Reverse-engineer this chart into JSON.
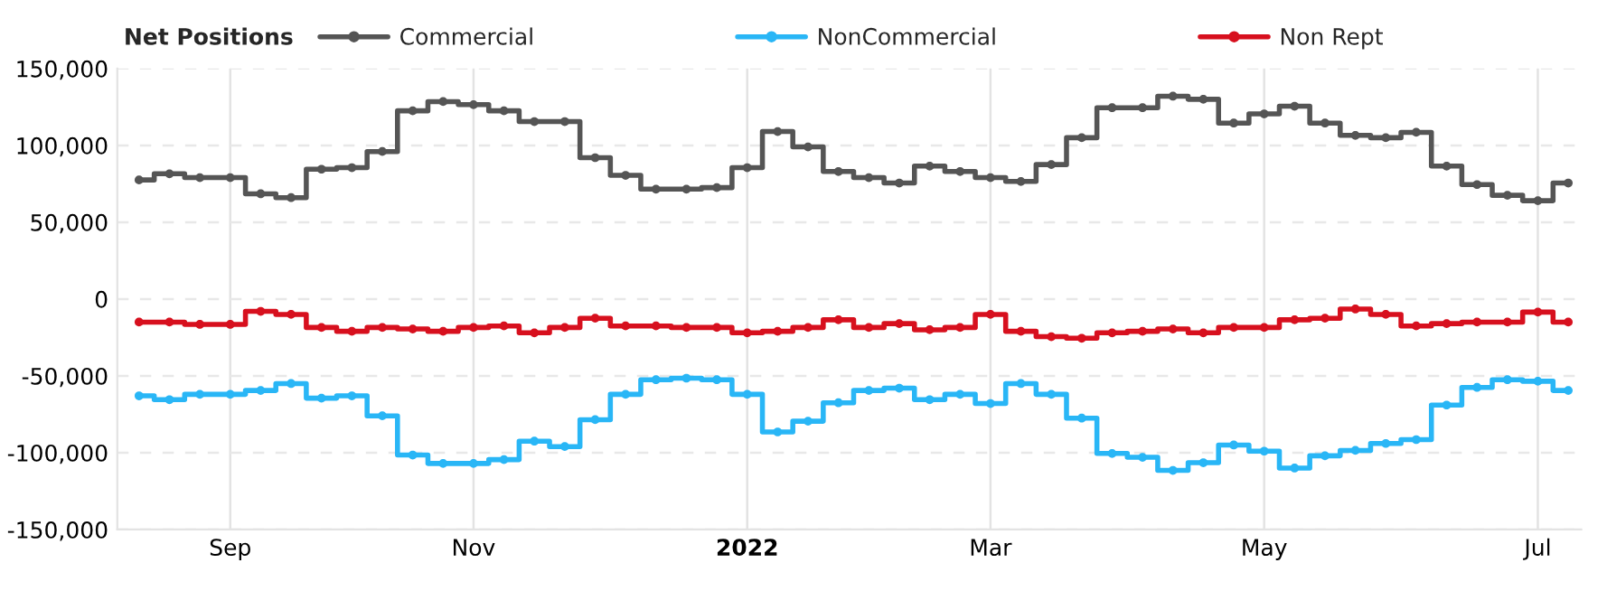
{
  "chart_data": {
    "type": "step",
    "title": "Net Positions",
    "x": [
      "2021-08-17",
      "2021-08-24",
      "2021-08-31",
      "2021-09-07",
      "2021-09-14",
      "2021-09-21",
      "2021-09-28",
      "2021-10-05",
      "2021-10-12",
      "2021-10-19",
      "2021-10-26",
      "2021-11-02",
      "2021-11-09",
      "2021-11-16",
      "2021-11-23",
      "2021-11-30",
      "2021-12-07",
      "2021-12-14",
      "2021-12-21",
      "2021-12-28",
      "2022-01-04",
      "2022-01-11",
      "2022-01-18",
      "2022-01-25",
      "2022-02-01",
      "2022-02-08",
      "2022-02-15",
      "2022-02-22",
      "2022-03-01",
      "2022-03-08",
      "2022-03-15",
      "2022-03-22",
      "2022-03-29",
      "2022-04-05",
      "2022-04-12",
      "2022-04-19",
      "2022-04-26",
      "2022-05-03",
      "2022-05-10",
      "2022-05-17",
      "2022-05-24",
      "2022-05-31",
      "2022-06-07",
      "2022-06-14",
      "2022-06-21",
      "2022-06-28",
      "2022-07-05",
      "2022-07-12"
    ],
    "series": [
      {
        "name": "Commercial",
        "color": "#555555",
        "values": [
          77500,
          81500,
          79000,
          79000,
          68500,
          66000,
          84500,
          85500,
          96000,
          122500,
          128500,
          126500,
          122500,
          115500,
          115500,
          92000,
          80500,
          71500,
          71500,
          72500,
          85500,
          109000,
          99000,
          83000,
          79000,
          75500,
          86500,
          83000,
          79000,
          76500,
          87500,
          105000,
          124500,
          124500,
          132000,
          130000,
          114500,
          120500,
          125500,
          114500,
          106500,
          105000,
          108500,
          86500,
          74500,
          67500,
          64000,
          75500
        ]
      },
      {
        "name": "NonCommercial",
        "color": "#29b6f6",
        "values": [
          -63000,
          -65500,
          -62000,
          -62000,
          -59500,
          -55000,
          -64500,
          -63000,
          -76000,
          -101500,
          -107000,
          -107000,
          -104500,
          -92500,
          -96000,
          -78500,
          -62000,
          -52500,
          -51500,
          -52500,
          -62000,
          -86500,
          -79500,
          -67500,
          -59500,
          -58000,
          -65500,
          -62000,
          -68000,
          -55000,
          -62000,
          -77500,
          -100500,
          -103000,
          -111500,
          -106500,
          -95000,
          -99000,
          -110000,
          -102000,
          -98500,
          -94000,
          -91500,
          -69000,
          -57500,
          -52500,
          -53500,
          -59500
        ]
      },
      {
        "name": "Non Rept",
        "color": "#d7101e",
        "values": [
          -15000,
          -15000,
          -16500,
          -16500,
          -8000,
          -10000,
          -18500,
          -21000,
          -18500,
          -19500,
          -21000,
          -18500,
          -17500,
          -22000,
          -18500,
          -12500,
          -17500,
          -17500,
          -18500,
          -18500,
          -22000,
          -21000,
          -18500,
          -13500,
          -18500,
          -16000,
          -20000,
          -18500,
          -10000,
          -21000,
          -24500,
          -25500,
          -22000,
          -21000,
          -19500,
          -22000,
          -18500,
          -18500,
          -13500,
          -12500,
          -6500,
          -10000,
          -17500,
          -16000,
          -15000,
          -15000,
          -8500,
          -15000
        ]
      }
    ],
    "xlim": [
      "2021-08-12",
      "2022-07-15"
    ],
    "xticks": [
      {
        "value": "2021-09-07",
        "label": "Sep"
      },
      {
        "value": "2021-11-02",
        "label": "Nov"
      },
      {
        "value": "2022-01-04",
        "label": "2022"
      },
      {
        "value": "2022-03-01",
        "label": "Mar"
      },
      {
        "value": "2022-05-03",
        "label": "May"
      },
      {
        "value": "2022-07-05",
        "label": "Jul"
      }
    ],
    "ylim": [
      -150000,
      150000
    ],
    "yticks": [
      {
        "value": -150000,
        "label": "-150,000"
      },
      {
        "value": -100000,
        "label": "-100,000"
      },
      {
        "value": -50000,
        "label": "-50,000"
      },
      {
        "value": 0,
        "label": "0"
      },
      {
        "value": 50000,
        "label": "50,000"
      },
      {
        "value": 100000,
        "label": "100,000"
      },
      {
        "value": 150000,
        "label": "150,000"
      }
    ],
    "grid": true,
    "legend": "top",
    "marker": "circle",
    "line_style": "solid"
  }
}
